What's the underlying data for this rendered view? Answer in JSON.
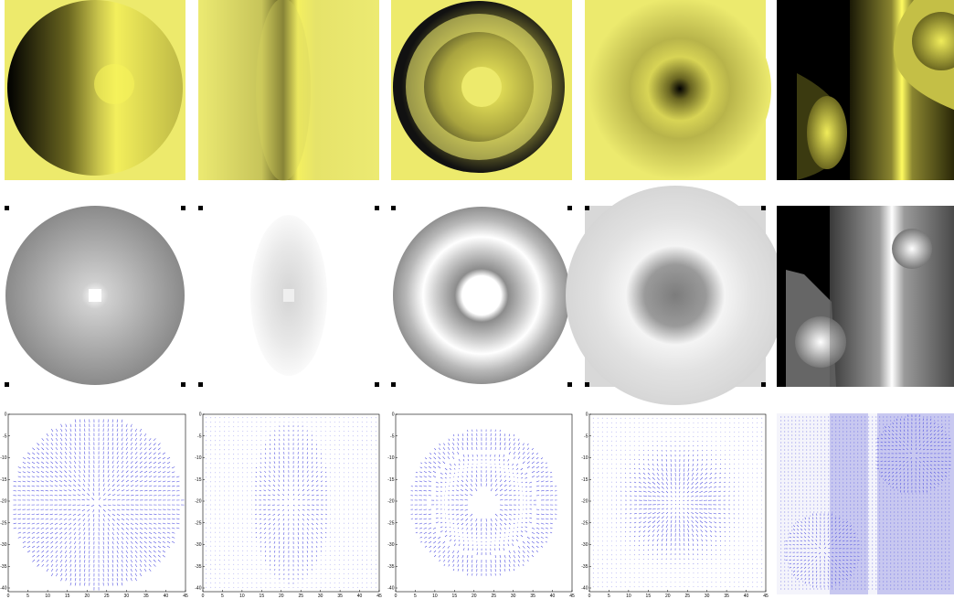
{
  "figure": {
    "rows": 3,
    "columns": 5,
    "row_types": [
      "yellow-intensity-map",
      "grayscale-map",
      "vector-field-quiver-plot"
    ],
    "colors": {
      "yellow_bright": "#f0ec6a",
      "yellow_dark": "#000000",
      "gray_light": "#ffffff",
      "gray_mid": "#7a7a7a",
      "gray_dark": "#000000",
      "quiver": "#4a4adf"
    }
  },
  "quiver_axes": {
    "x_ticks": [
      "0",
      "5",
      "10",
      "15",
      "20",
      "25",
      "30",
      "35",
      "40",
      "45"
    ],
    "y_ticks": [
      "0",
      "-5",
      "-10",
      "-15",
      "-20",
      "-25",
      "-30",
      "-35",
      "-40"
    ]
  }
}
